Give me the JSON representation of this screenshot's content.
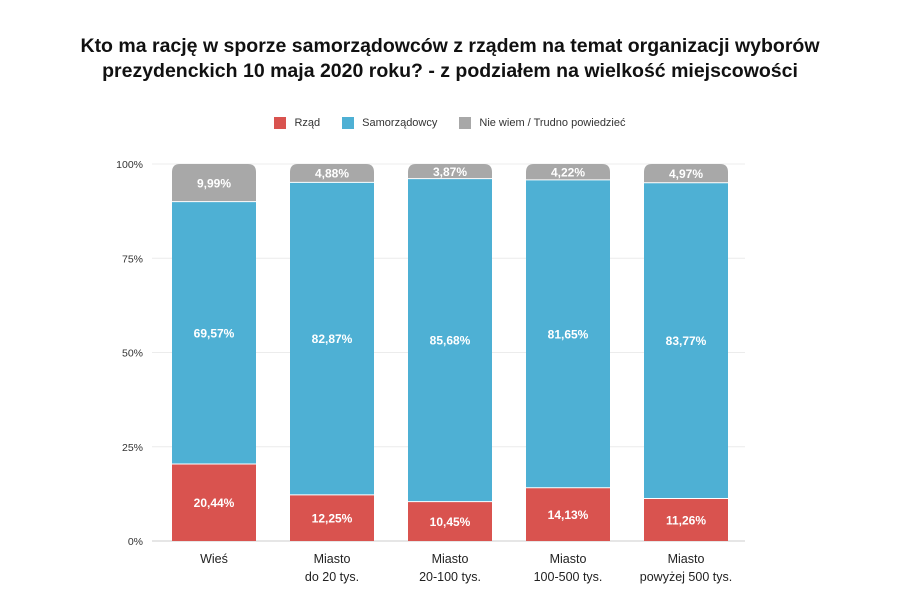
{
  "chart_data": {
    "type": "bar",
    "stacked": true,
    "title_lines": [
      "Kto ma rację w sporze samorządowców z rządem na temat organizacji wyborów",
      "prezydenckich 10 maja 2020 roku? - z podziałem na wielkość miejscowości"
    ],
    "categories": [
      [
        "Wieś"
      ],
      [
        "Miasto",
        "do 20 tys."
      ],
      [
        "Miasto",
        "20-100 tys."
      ],
      [
        "Miasto",
        "100-500 tys."
      ],
      [
        "Miasto",
        "powyżej 500 tys."
      ]
    ],
    "series": [
      {
        "name": "Rząd",
        "color": "#d9534f",
        "values": [
          20.44,
          12.25,
          10.45,
          14.13,
          11.26
        ],
        "labels": [
          "20,44%",
          "12,25%",
          "10,45%",
          "14,13%",
          "11,26%"
        ]
      },
      {
        "name": "Samorządowcy",
        "color": "#4eb0d4",
        "values": [
          69.57,
          82.87,
          85.68,
          81.65,
          83.77
        ],
        "labels": [
          "69,57%",
          "82,87%",
          "85,68%",
          "81,65%",
          "83,77%"
        ]
      },
      {
        "name": "Nie wiem / Trudno powiedzieć",
        "color": "#a8a8a8",
        "values": [
          9.99,
          4.88,
          3.87,
          4.22,
          4.97
        ],
        "labels": [
          "9,99%",
          "4,88%",
          "3,87%",
          "4,22%",
          "4,97%"
        ]
      }
    ],
    "yticks": [
      "0%",
      "25%",
      "50%",
      "75%",
      "100%"
    ],
    "ylim": [
      0,
      100
    ],
    "legend_position": "top-center",
    "grid": true
  }
}
